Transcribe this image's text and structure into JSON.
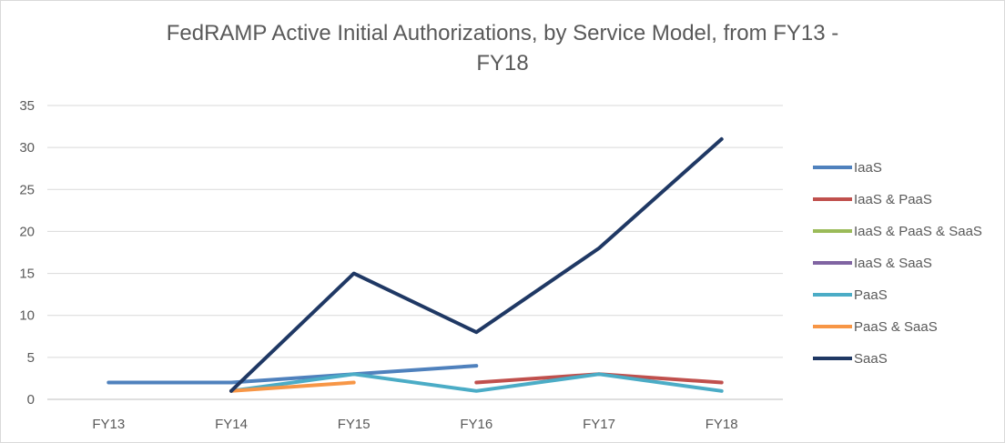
{
  "chart_data": {
    "type": "line",
    "title_line1": "FedRAMP Active Initial Authorizations, by Service Model, from FY13 -",
    "title_line2": "FY18",
    "categories": [
      "FY13",
      "FY14",
      "FY15",
      "FY16",
      "FY17",
      "FY18"
    ],
    "ylim": [
      0,
      35
    ],
    "yticks": [
      0,
      5,
      10,
      15,
      20,
      25,
      30,
      35
    ],
    "grid": true,
    "legend_position": "right",
    "series": [
      {
        "name": "IaaS",
        "color": "#4f81bd",
        "values": [
          2,
          2,
          3,
          4,
          null,
          null
        ]
      },
      {
        "name": "IaaS & PaaS",
        "color": "#c0504d",
        "values": [
          null,
          null,
          null,
          2,
          3,
          2
        ]
      },
      {
        "name": "IaaS & PaaS & SaaS",
        "color": "#9bbb59",
        "values": [
          null,
          null,
          null,
          null,
          null,
          null
        ]
      },
      {
        "name": "IaaS & SaaS",
        "color": "#8064a2",
        "values": [
          null,
          null,
          null,
          null,
          null,
          null
        ]
      },
      {
        "name": "PaaS",
        "color": "#4bacc6",
        "values": [
          null,
          1,
          3,
          1,
          3,
          1
        ]
      },
      {
        "name": "PaaS & SaaS",
        "color": "#f79646",
        "values": [
          null,
          1,
          2,
          null,
          null,
          null
        ]
      },
      {
        "name": "SaaS",
        "color": "#1f3864",
        "values": [
          null,
          1,
          15,
          8,
          18,
          31
        ]
      }
    ]
  }
}
